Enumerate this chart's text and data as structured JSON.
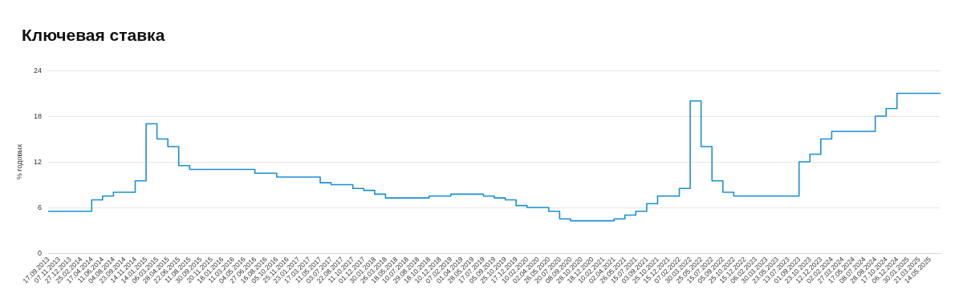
{
  "chart_data": {
    "type": "step",
    "title": "Ключевая ставка",
    "ylabel": "% годовых",
    "categories": [
      "17.09.2013",
      "07.11.2013",
      "27.12.2013",
      "25.02.2014",
      "17.04.2014",
      "11.06.2014",
      "04.08.2014",
      "23.09.2014",
      "14.11.2014",
      "14.01.2015",
      "06.03.2015",
      "28.04.2015",
      "22.06.2015",
      "11.08.2015",
      "30.09.2015",
      "20.11.2015",
      "18.01.2016",
      "11.03.2016",
      "04.05.2016",
      "27.06.2016",
      "16.08.2016",
      "05.10.2016",
      "25.11.2016",
      "23.01.2017",
      "17.03.2017",
      "11.05.2017",
      "03.07.2017",
      "22.08.2017",
      "11.10.2017",
      "01.12.2017",
      "30.01.2018",
      "26.03.2018",
      "18.05.2018",
      "10.07.2018",
      "29.08.2018",
      "18.10.2018",
      "10.12.2018",
      "07.02.2019",
      "01.04.2019",
      "28.05.2019",
      "17.07.2019",
      "05.09.2019",
      "25.10.2019",
      "17.12.2019",
      "10.02.2020",
      "02.04.2020",
      "26.05.2020",
      "20.07.2020",
      "08.09.2020",
      "28.10.2020",
      "18.12.2020",
      "10.02.2021",
      "02.04.2021",
      "26.05.2021",
      "15.07.2021",
      "03.09.2021",
      "25.10.2021",
      "15.12.2021",
      "07.02.2022",
      "30.03.2022",
      "25.05.2022",
      "15.07.2022",
      "05.09.2022",
      "25.10.2022",
      "15.12.2022",
      "06.02.2023",
      "30.03.2023",
      "23.05.2023",
      "13.07.2023",
      "01.09.2023",
      "23.10.2023",
      "12.12.2023",
      "02.02.2024",
      "27.03.2024",
      "17.05.2024",
      "08.07.2024",
      "28.08.2024",
      "17.10.2024",
      "06.12.2024",
      "30.01.2025",
      "21.03.2025",
      "14.05.2025",
      null
    ],
    "series": [
      {
        "color": "#1a8fd1",
        "values": [
          5.5,
          5.5,
          5.5,
          5.5,
          7,
          7.5,
          8,
          8,
          9.5,
          17,
          15,
          14,
          11.5,
          11,
          11,
          11,
          11,
          11,
          11,
          10.5,
          10.5,
          10,
          10,
          10,
          10,
          9.25,
          9,
          9,
          8.5,
          8.25,
          7.75,
          7.25,
          7.25,
          7.25,
          7.25,
          7.5,
          7.5,
          7.75,
          7.75,
          7.75,
          7.5,
          7.25,
          7,
          6.25,
          6,
          6,
          5.5,
          4.5,
          4.25,
          4.25,
          4.25,
          4.25,
          4.5,
          5,
          5.5,
          6.5,
          7.5,
          7.5,
          8.5,
          20,
          14,
          9.5,
          8,
          7.5,
          7.5,
          7.5,
          7.5,
          7.5,
          7.5,
          12,
          13,
          15,
          16,
          16,
          16,
          16,
          18,
          19,
          21,
          21,
          21,
          21,
          21
        ]
      }
    ],
    "ylim": [
      0,
      24
    ],
    "yticks": [
      0,
      6,
      12,
      18,
      24
    ],
    "grid": "y",
    "marker": "none",
    "line_style": "solid"
  }
}
